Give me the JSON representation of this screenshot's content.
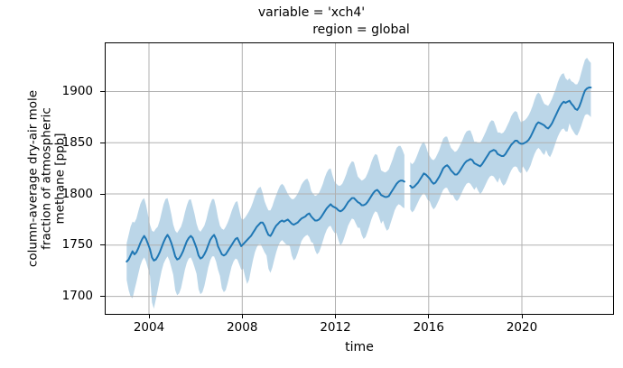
{
  "chart_data": {
    "type": "line",
    "title_line1": "variable = 'xch4'",
    "title_line2": "region = global",
    "xlabel": "time",
    "ylabel_lines": [
      "column-average dry-air mole",
      "fraction of atmospheric",
      "methane [ppb]"
    ],
    "series": "monthly mean xch4 with uncertainty band",
    "line_color": "#1f77b4",
    "band_color": "rgba(31,119,180,0.3)",
    "grid_color": "#b0b0b0",
    "spine_color": "#000000",
    "axes": {
      "xlim": [
        2002.1,
        2023.95
      ],
      "ylim": [
        1682,
        1948
      ],
      "grid": true,
      "xticks": {
        "values": [
          2004,
          2008,
          2012,
          2016,
          2020
        ],
        "labels": [
          "2004",
          "2008",
          "2012",
          "2016",
          "2020"
        ]
      },
      "yticks": {
        "values": [
          1700,
          1750,
          1800,
          1850,
          1900
        ],
        "labels": [
          "1700",
          "1750",
          "1800",
          "1850",
          "1900"
        ]
      }
    },
    "x_start_year": 2003,
    "x_cadence": "monthly",
    "n_points": 240,
    "gap": {
      "missing_months": [
        "2015-01",
        "2015-02"
      ]
    },
    "y": [
      1734,
      1736,
      1740,
      1744,
      1741,
      1743,
      1747,
      1752,
      1756,
      1759,
      1756,
      1751,
      1746,
      1738,
      1735,
      1736,
      1739,
      1743,
      1748,
      1753,
      1757,
      1760,
      1757,
      1752,
      1746,
      1739,
      1736,
      1737,
      1740,
      1744,
      1749,
      1754,
      1757,
      1759,
      1757,
      1752,
      1747,
      1740,
      1737,
      1738,
      1741,
      1745,
      1750,
      1755,
      1758,
      1760,
      1756,
      1749,
      1745,
      1741,
      1740,
      1741,
      1744,
      1747,
      1750,
      1753,
      1756,
      1757,
      1753,
      1749,
      1751,
      1753,
      1755,
      1757,
      1759,
      1762,
      1765,
      1768,
      1770,
      1772,
      1772,
      1769,
      1764,
      1760,
      1759,
      1762,
      1766,
      1769,
      1771,
      1773,
      1774,
      1773,
      1774,
      1775,
      1773,
      1771,
      1770,
      1771,
      1772,
      1774,
      1776,
      1777,
      1778,
      1780,
      1781,
      1778,
      1776,
      1774,
      1774,
      1775,
      1777,
      1780,
      1783,
      1786,
      1788,
      1790,
      1788,
      1787,
      1786,
      1784,
      1783,
      1784,
      1786,
      1789,
      1792,
      1794,
      1796,
      1796,
      1794,
      1792,
      1791,
      1789,
      1789,
      1790,
      1792,
      1795,
      1798,
      1801,
      1803,
      1804,
      1802,
      1799,
      1798,
      1797,
      1797,
      1798,
      1801,
      1804,
      1807,
      1810,
      1812,
      1813,
      1813,
      1812,
      null,
      null,
      1808,
      1806,
      1807,
      1809,
      1811,
      1814,
      1817,
      1820,
      1819,
      1817,
      1815,
      1812,
      1810,
      1811,
      1814,
      1817,
      1821,
      1825,
      1827,
      1828,
      1826,
      1823,
      1821,
      1819,
      1819,
      1821,
      1824,
      1827,
      1830,
      1832,
      1833,
      1834,
      1833,
      1830,
      1829,
      1828,
      1827,
      1829,
      1832,
      1835,
      1838,
      1841,
      1842,
      1843,
      1842,
      1839,
      1838,
      1837,
      1837,
      1839,
      1842,
      1845,
      1848,
      1850,
      1852,
      1852,
      1850,
      1849,
      1849,
      1850,
      1851,
      1853,
      1856,
      1860,
      1864,
      1868,
      1870,
      1869,
      1868,
      1867,
      1865,
      1864,
      1866,
      1869,
      1873,
      1877,
      1881,
      1885,
      1888,
      1890,
      1889,
      1890,
      1891,
      1888,
      1886,
      1883,
      1882,
      1885,
      1890,
      1896,
      1901,
      1903,
      1904,
      1904
    ],
    "y_upper": [
      1752,
      1760,
      1768,
      1773,
      1772,
      1776,
      1783,
      1790,
      1794,
      1796,
      1789,
      1779,
      1770,
      1764,
      1763,
      1766,
      1768,
      1774,
      1782,
      1790,
      1795,
      1796,
      1789,
      1780,
      1770,
      1764,
      1762,
      1765,
      1768,
      1774,
      1782,
      1789,
      1794,
      1795,
      1788,
      1780,
      1771,
      1765,
      1763,
      1766,
      1769,
      1775,
      1783,
      1790,
      1795,
      1795,
      1787,
      1777,
      1769,
      1766,
      1765,
      1768,
      1772,
      1777,
      1783,
      1788,
      1792,
      1793,
      1784,
      1776,
      1775,
      1777,
      1780,
      1783,
      1787,
      1792,
      1798,
      1803,
      1806,
      1807,
      1801,
      1793,
      1788,
      1784,
      1784,
      1788,
      1794,
      1799,
      1804,
      1808,
      1810,
      1808,
      1804,
      1800,
      1797,
      1795,
      1795,
      1797,
      1800,
      1804,
      1809,
      1812,
      1814,
      1815,
      1811,
      1803,
      1800,
      1798,
      1799,
      1801,
      1805,
      1810,
      1816,
      1821,
      1824,
      1825,
      1818,
      1812,
      1810,
      1808,
      1808,
      1810,
      1814,
      1819,
      1825,
      1829,
      1832,
      1831,
      1824,
      1817,
      1815,
      1813,
      1814,
      1816,
      1820,
      1825,
      1831,
      1836,
      1839,
      1838,
      1831,
      1823,
      1822,
      1821,
      1822,
      1824,
      1829,
      1834,
      1840,
      1845,
      1847,
      1847,
      1843,
      1838,
      null,
      null,
      1831,
      1829,
      1831,
      1835,
      1840,
      1845,
      1849,
      1851,
      1847,
      1841,
      1837,
      1834,
      1833,
      1835,
      1839,
      1843,
      1849,
      1854,
      1856,
      1856,
      1850,
      1845,
      1843,
      1841,
      1842,
      1845,
      1849,
      1853,
      1858,
      1861,
      1862,
      1862,
      1857,
      1851,
      1851,
      1850,
      1850,
      1853,
      1857,
      1861,
      1866,
      1870,
      1872,
      1871,
      1866,
      1860,
      1860,
      1859,
      1860,
      1863,
      1867,
      1871,
      1876,
      1879,
      1881,
      1880,
      1874,
      1870,
      1871,
      1872,
      1874,
      1877,
      1881,
      1886,
      1892,
      1897,
      1899,
      1897,
      1892,
      1888,
      1887,
      1886,
      1889,
      1893,
      1898,
      1903,
      1909,
      1914,
      1917,
      1918,
      1913,
      1911,
      1913,
      1910,
      1909,
      1907,
      1907,
      1911,
      1918,
      1925,
      1931,
      1933,
      1930,
      1928
    ],
    "y_lower": [
      1716,
      1706,
      1700,
      1698,
      1706,
      1714,
      1722,
      1730,
      1735,
      1738,
      1734,
      1727,
      1720,
      1694,
      1688,
      1697,
      1706,
      1716,
      1725,
      1732,
      1736,
      1739,
      1735,
      1728,
      1721,
      1706,
      1701,
      1703,
      1708,
      1717,
      1726,
      1733,
      1737,
      1738,
      1734,
      1728,
      1722,
      1707,
      1702,
      1704,
      1710,
      1719,
      1728,
      1735,
      1739,
      1739,
      1734,
      1726,
      1720,
      1708,
      1704,
      1706,
      1713,
      1721,
      1729,
      1734,
      1737,
      1736,
      1731,
      1726,
      1727,
      1719,
      1712,
      1716,
      1726,
      1735,
      1743,
      1748,
      1751,
      1751,
      1747,
      1743,
      1740,
      1727,
      1723,
      1728,
      1736,
      1743,
      1749,
      1753,
      1755,
      1753,
      1751,
      1750,
      1749,
      1740,
      1735,
      1737,
      1742,
      1748,
      1754,
      1757,
      1759,
      1760,
      1758,
      1753,
      1752,
      1745,
      1741,
      1743,
      1748,
      1754,
      1760,
      1765,
      1768,
      1769,
      1765,
      1762,
      1762,
      1755,
      1750,
      1752,
      1757,
      1763,
      1769,
      1773,
      1776,
      1775,
      1771,
      1767,
      1767,
      1760,
      1756,
      1758,
      1763,
      1769,
      1775,
      1780,
      1783,
      1782,
      1777,
      1771,
      1774,
      1768,
      1764,
      1766,
      1772,
      1778,
      1784,
      1788,
      1790,
      1789,
      1787,
      1786,
      null,
      null,
      1785,
      1782,
      1784,
      1788,
      1792,
      1796,
      1799,
      1801,
      1798,
      1794,
      1793,
      1788,
      1785,
      1787,
      1791,
      1795,
      1800,
      1804,
      1806,
      1806,
      1802,
      1799,
      1799,
      1795,
      1793,
      1795,
      1799,
      1803,
      1807,
      1810,
      1811,
      1810,
      1807,
      1804,
      1807,
      1803,
      1800,
      1802,
      1806,
      1810,
      1814,
      1817,
      1818,
      1817,
      1814,
      1811,
      1816,
      1811,
      1808,
      1810,
      1814,
      1819,
      1823,
      1826,
      1827,
      1826,
      1822,
      1820,
      1827,
      1824,
      1821,
      1824,
      1828,
      1834,
      1839,
      1843,
      1845,
      1843,
      1840,
      1838,
      1843,
      1838,
      1836,
      1840,
      1845,
      1851,
      1856,
      1860,
      1863,
      1864,
      1861,
      1861,
      1869,
      1864,
      1861,
      1858,
      1857,
      1861,
      1866,
      1872,
      1877,
      1878,
      1877,
      1875
    ]
  }
}
